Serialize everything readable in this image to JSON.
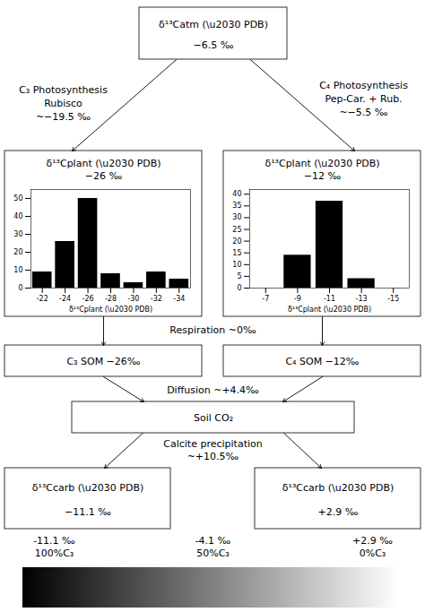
{
  "chart_data": [
    {
      "type": "diagram",
      "annotations": [
        "δ¹³Catm (\\u2030 PDB)",
        "−6.5 ‰",
        "C₃ Photosynthesis",
        "Rubisco",
        "~−19.5 ‰",
        "C₄ Photosynthesis",
        "Pep-Car. + Rub.",
        "~−5.5 ‰",
        "δ¹³Cplant (\\u2030 PDB)",
        "−26 ‰",
        "δ¹³Cplant (\\u2030 PDB)",
        "−12 ‰",
        "Respiration ~0‰",
        "C₃ SOM −26‰",
        "C₄ SOM −12‰",
        "Diffusion ~+4.4‰",
        "Soil CO₂",
        "Calcite precipitation",
        "~+10.5‰",
        "δ¹³Ccarb (\\u2030 PDB)",
        "−11.1 ‰",
        "δ¹³Ccarb (\\u2030 PDB)",
        "+2.9 ‰",
        "-11.1 ‰",
        "100%C₃",
        "-4.1 ‰",
        "50%C₃",
        "+2.9 ‰",
        "0%C₃"
      ]
    },
    {
      "type": "bar",
      "xlabel": "δ¹³Cplant (\\u2030 PDB)",
      "x": [
        -22,
        -24,
        -26,
        -28,
        -30,
        -32,
        -34
      ],
      "values": [
        9,
        26,
        50,
        8,
        3,
        9,
        5
      ],
      "color": "#000000",
      "xlim": [
        -21,
        -35
      ],
      "xticks": [
        -22,
        -24,
        -26,
        -28,
        -30,
        -32,
        -34
      ],
      "ylim": [
        0,
        55
      ],
      "yticks": [
        0,
        10,
        20,
        30,
        40,
        50
      ]
    },
    {
      "type": "bar",
      "xlabel": "δ¹³Cplant (\\u2030 PDB)",
      "x": [
        -7,
        -9,
        -11,
        -13,
        -15
      ],
      "values": [
        0,
        14,
        37,
        4,
        0
      ],
      "color": "#000000",
      "xlim": [
        -6,
        -16
      ],
      "xticks": [
        -7,
        -9,
        -11,
        -13,
        -15
      ],
      "ylim": [
        0,
        42
      ],
      "yticks": [
        0,
        5,
        10,
        15,
        20,
        25,
        30,
        35,
        40
      ]
    }
  ]
}
